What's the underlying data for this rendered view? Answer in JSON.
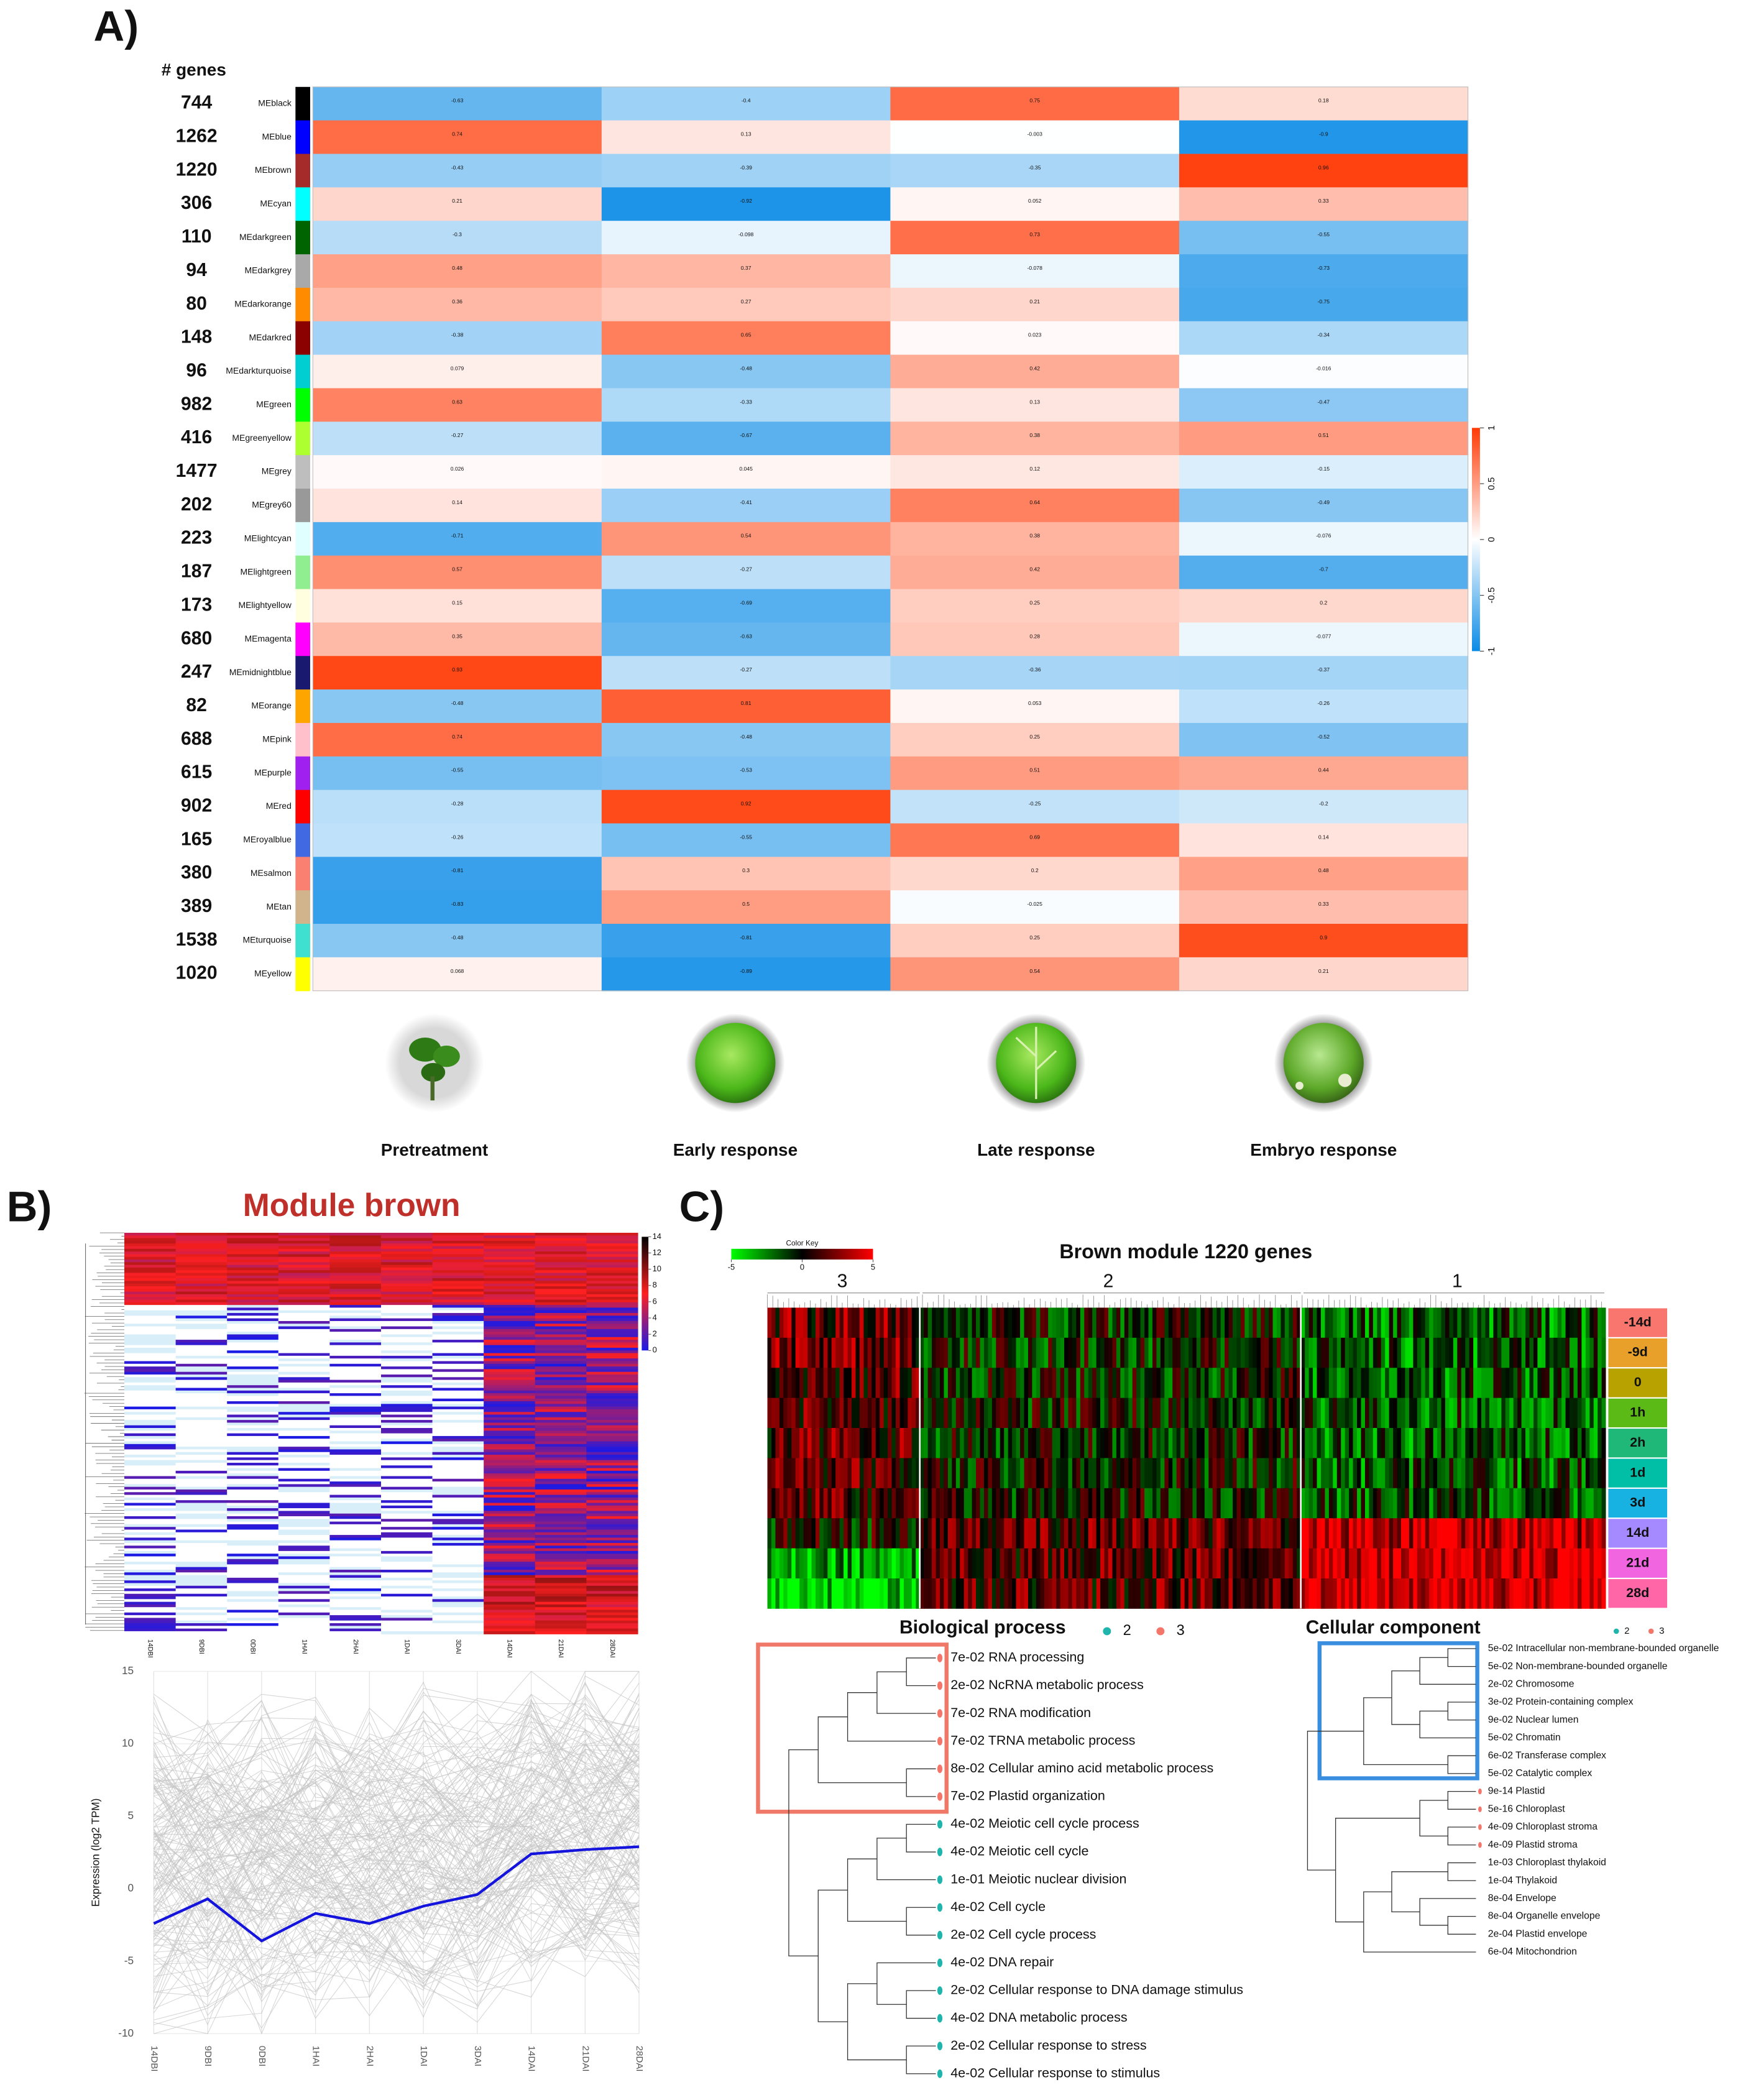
{
  "chart_data": [
    {
      "type": "heatmap",
      "row_header": "# genes",
      "rows": [
        "MEblack",
        "MEblue",
        "MEbrown",
        "MEcyan",
        "MEdarkgreen",
        "MEdarkgrey",
        "MEdarkorange",
        "MEdarkred",
        "MEdarkturquoise",
        "MEgreen",
        "MEgreenyellow",
        "MEgrey",
        "MEgrey60",
        "MElightcyan",
        "MElightgreen",
        "MElightyellow",
        "MEmagenta",
        "MEmidnightblue",
        "MEorange",
        "MEpink",
        "MEpurple",
        "MEred",
        "MEroyalblue",
        "MEsalmon",
        "MEtan",
        "MEturquoise",
        "MEyellow"
      ],
      "gene_counts": [
        744,
        1262,
        1220,
        306,
        110,
        94,
        80,
        148,
        96,
        982,
        416,
        1477,
        202,
        223,
        187,
        173,
        680,
        247,
        82,
        688,
        615,
        902,
        165,
        380,
        389,
        1538,
        1020
      ],
      "row_colors": [
        "#000000",
        "#0000ff",
        "#a52a2a",
        "#00ffff",
        "#006400",
        "#a9a9a9",
        "#ff8c00",
        "#8b0000",
        "#00ced1",
        "#00ff00",
        "#adff2f",
        "#bebebe",
        "#999999",
        "#e0ffff",
        "#90ee90",
        "#ffffe0",
        "#ff00ff",
        "#191970",
        "#ffa500",
        "#ffc0cb",
        "#a020f0",
        "#ff0000",
        "#4169e1",
        "#fa8072",
        "#d2b48c",
        "#40e0d0",
        "#ffff00"
      ],
      "columns": [
        "Pretreatment",
        "Early response",
        "Late response",
        "Embryo response"
      ],
      "values": [
        [
          -0.63,
          -0.4,
          0.75,
          0.18
        ],
        [
          0.74,
          0.13,
          -0.003,
          -0.9
        ],
        [
          -0.43,
          -0.39,
          -0.35,
          0.96
        ],
        [
          0.21,
          -0.92,
          0.052,
          0.33
        ],
        [
          -0.3,
          -0.098,
          0.73,
          -0.55
        ],
        [
          0.48,
          0.37,
          -0.078,
          -0.73
        ],
        [
          0.36,
          0.27,
          0.21,
          -0.75
        ],
        [
          -0.38,
          0.65,
          0.023,
          -0.34
        ],
        [
          0.079,
          -0.48,
          0.42,
          -0.016
        ],
        [
          0.63,
          -0.33,
          0.13,
          -0.47
        ],
        [
          -0.27,
          -0.67,
          0.38,
          0.51
        ],
        [
          0.026,
          0.045,
          0.12,
          -0.15
        ],
        [
          0.14,
          -0.41,
          0.64,
          -0.49
        ],
        [
          -0.71,
          0.54,
          0.38,
          -0.076
        ],
        [
          0.57,
          -0.27,
          0.42,
          -0.7
        ],
        [
          0.15,
          -0.69,
          0.25,
          0.2
        ],
        [
          0.35,
          -0.63,
          0.28,
          -0.077
        ],
        [
          0.93,
          -0.27,
          -0.36,
          -0.37
        ],
        [
          -0.48,
          0.81,
          0.053,
          -0.26
        ],
        [
          0.74,
          -0.48,
          0.25,
          -0.52
        ],
        [
          -0.55,
          -0.53,
          0.51,
          0.44
        ],
        [
          -0.28,
          0.92,
          -0.25,
          -0.2
        ],
        [
          -0.26,
          -0.55,
          0.69,
          0.14
        ],
        [
          -0.81,
          0.3,
          0.2,
          0.48
        ],
        [
          -0.83,
          0.5,
          -0.025,
          0.33
        ],
        [
          -0.48,
          -0.81,
          0.25,
          0.9
        ],
        [
          0.068,
          -0.89,
          0.54,
          0.21
        ]
      ],
      "colorbar": {
        "lim": [
          -1,
          1
        ],
        "ticks": [
          -1,
          -0.5,
          0,
          0.5,
          1
        ],
        "colors": [
          "#0a8be6",
          "#ffffff",
          "#ff3a05"
        ]
      }
    },
    {
      "type": "line",
      "categories": [
        "14DBI",
        "9DBI",
        "0DBI",
        "1HAI",
        "2HAI",
        "1DAI",
        "3DAI",
        "14DAI",
        "21DAI",
        "28DAI"
      ],
      "values": [
        -2.4,
        -0.7,
        -3.6,
        -1.7,
        -2.4,
        -1.2,
        -0.4,
        2.4,
        2.7,
        2.9
      ],
      "color": "#1414dc",
      "ylabel": "Expression (log2 TPM)",
      "ylim": [
        -10,
        15
      ],
      "yticks": [
        -10,
        -5,
        0,
        5,
        10,
        15
      ],
      "grid": true
    }
  ],
  "figure": {
    "panel_labels": [
      "A)",
      "B)",
      "C)"
    ],
    "b_title": "Module brown",
    "b_colorbar": {
      "lim": [
        0,
        14
      ],
      "ticks": [
        0,
        2,
        4,
        6,
        8,
        10,
        12,
        14
      ],
      "colors": [
        "#1a1ae6",
        "#ff2020",
        "#000000"
      ]
    },
    "c_title": "Brown module 1220 genes",
    "c_color_key": {
      "title": "Color Key",
      "lim": [
        -5,
        5
      ],
      "ticks": [
        -5,
        0,
        5
      ],
      "colors": [
        "#00ff00",
        "#000000",
        "#ff0000"
      ]
    },
    "c_clusters": [
      "3",
      "2",
      "1"
    ],
    "c_rows": [
      {
        "label": "-14d",
        "color": "#f8766d"
      },
      {
        "label": "-9d",
        "color": "#e8a02a"
      },
      {
        "label": "0",
        "color": "#b8a200"
      },
      {
        "label": "1h",
        "color": "#5cba16"
      },
      {
        "label": "2h",
        "color": "#1fb878"
      },
      {
        "label": "1d",
        "color": "#00bfa6"
      },
      {
        "label": "3d",
        "color": "#17b2e2"
      },
      {
        "label": "14d",
        "color": "#a58aff"
      },
      {
        "label": "21d",
        "color": "#f265e0"
      },
      {
        "label": "28d",
        "color": "#ff66a8"
      }
    ]
  },
  "go_terms": {
    "biological_process": {
      "title": "Biological process",
      "legend": [
        {
          "label": "2",
          "color": "#1fb5ad"
        },
        {
          "label": "3",
          "color": "#f4766a"
        }
      ],
      "terms": [
        {
          "label": "7e-02 RNA processing",
          "group": "3"
        },
        {
          "label": "2e-02 NcRNA metabolic process",
          "group": "3"
        },
        {
          "label": "7e-02 RNA modification",
          "group": "3"
        },
        {
          "label": "7e-02 TRNA metabolic process",
          "group": "3"
        },
        {
          "label": "8e-02 Cellular amino acid metabolic process",
          "group": "3"
        },
        {
          "label": "7e-02 Plastid organization",
          "group": "3"
        },
        {
          "label": "4e-02 Meiotic cell cycle process",
          "group": "2"
        },
        {
          "label": "4e-02 Meiotic cell cycle",
          "group": "2"
        },
        {
          "label": "1e-01 Meiotic nuclear division",
          "group": "2"
        },
        {
          "label": "4e-02 Cell cycle",
          "group": "2"
        },
        {
          "label": "2e-02 Cell cycle process",
          "group": "2"
        },
        {
          "label": "4e-02 DNA repair",
          "group": "2"
        },
        {
          "label": "2e-02 Cellular response to DNA damage stimulus",
          "group": "2"
        },
        {
          "label": "4e-02 DNA metabolic process",
          "group": "2"
        },
        {
          "label": "2e-02 Cellular response to stress",
          "group": "2"
        },
        {
          "label": "4e-02 Cellular response to stimulus",
          "group": "2"
        }
      ]
    },
    "cellular_component": {
      "title": "Cellular component",
      "legend": [
        {
          "label": "2",
          "color": "#1fb5ad"
        },
        {
          "label": "3",
          "color": "#f4766a"
        }
      ],
      "terms": [
        {
          "label": "5e-02 Intracellular non-membrane-bounded organelle",
          "group": null
        },
        {
          "label": "5e-02 Non-membrane-bounded organelle",
          "group": null
        },
        {
          "label": "2e-02 Chromosome",
          "group": null
        },
        {
          "label": "3e-02 Protein-containing complex",
          "group": null
        },
        {
          "label": "9e-02 Nuclear lumen",
          "group": null
        },
        {
          "label": "5e-02 Chromatin",
          "group": null
        },
        {
          "label": "6e-02 Transferase complex",
          "group": null
        },
        {
          "label": "5e-02 Catalytic complex",
          "group": null
        },
        {
          "label": "9e-14 Plastid",
          "group": "3"
        },
        {
          "label": "5e-16 Chloroplast",
          "group": "3"
        },
        {
          "label": "4e-09 Chloroplast stroma",
          "group": "3"
        },
        {
          "label": "4e-09 Plastid stroma",
          "group": "3"
        },
        {
          "label": "1e-03 Chloroplast thylakoid",
          "group": null
        },
        {
          "label": "1e-04 Thylakoid",
          "group": null
        },
        {
          "label": "8e-04 Envelope",
          "group": null
        },
        {
          "label": "8e-04 Organelle envelope",
          "group": null
        },
        {
          "label": "2e-04 Plastid envelope",
          "group": null
        },
        {
          "label": "6e-04 Mitochondrion",
          "group": null
        }
      ]
    }
  }
}
